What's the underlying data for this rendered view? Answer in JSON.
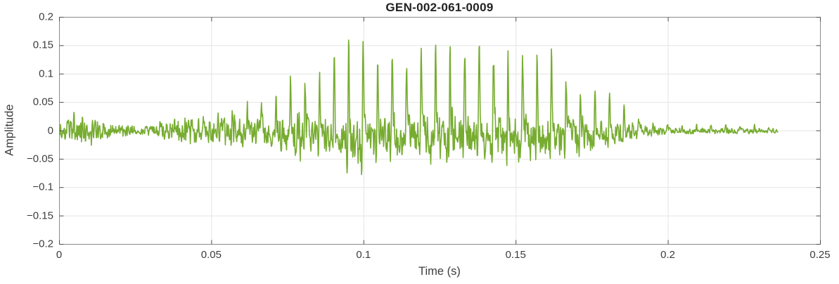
{
  "figure": {
    "title": "GEN-002-061-0009",
    "xlabel": "Time (s)",
    "ylabel": "Amplitude"
  },
  "chart_data": {
    "type": "line",
    "title": "GEN-002-061-0009",
    "xlabel": "Time (s)",
    "ylabel": "Amplitude",
    "xlim": [
      0,
      0.25
    ],
    "ylim": [
      -0.2,
      0.2
    ],
    "xticks": [
      0,
      0.05,
      0.1,
      0.15,
      0.2,
      0.25
    ],
    "xtick_labels": [
      "0",
      "0.05",
      "0.1",
      "0.15",
      "0.2",
      "0.25"
    ],
    "yticks": [
      -0.2,
      -0.15,
      -0.1,
      -0.05,
      0,
      0.05,
      0.1,
      0.15,
      0.2
    ],
    "ytick_labels": [
      "−0.2",
      "−0.15",
      "−0.1",
      "−0.05",
      "0",
      "0.05",
      "0.1",
      "0.15",
      "0.2"
    ],
    "grid": true,
    "legend": "none",
    "line_color": "#77AC30",
    "line_width": 1.6,
    "axis_color": "#8c8c8c",
    "tick_color": "#4d4d4d",
    "grid_color": "#e4e4e4",
    "tick_label_color": "#3d3d3d",
    "title_color": "#212121",
    "label_color": "#3d3d3d",
    "background": "#ffffff",
    "signal": {
      "kind": "speech-like audio waveform",
      "duration_s": 0.236,
      "sample_rate_hz": 8000,
      "pitch_hz": 210,
      "harmonic_amps": [
        0.3,
        0.26,
        0.2,
        0.22,
        0.18,
        0.12,
        0.1,
        0.07
      ],
      "harmonic_phases": [
        0,
        0.3,
        0.6,
        1.0,
        1.4,
        1.9,
        2.4,
        3.0
      ],
      "negative_asymmetry": 0.92,
      "noise_mix_keyframes": [
        [
          0.0,
          0.6
        ],
        [
          0.03,
          0.6
        ],
        [
          0.05,
          0.45
        ],
        [
          0.07,
          0.3
        ],
        [
          0.09,
          0.18
        ],
        [
          0.16,
          0.18
        ],
        [
          0.185,
          0.28
        ],
        [
          0.2,
          0.35
        ],
        [
          0.236,
          0.35
        ]
      ],
      "envelope_keyframes": [
        [
          0.0,
          0.02
        ],
        [
          0.003,
          0.032
        ],
        [
          0.006,
          0.04
        ],
        [
          0.009,
          0.035
        ],
        [
          0.012,
          0.038
        ],
        [
          0.015,
          0.028
        ],
        [
          0.018,
          0.018
        ],
        [
          0.022,
          0.014
        ],
        [
          0.026,
          0.011
        ],
        [
          0.03,
          0.013
        ],
        [
          0.034,
          0.022
        ],
        [
          0.038,
          0.03
        ],
        [
          0.042,
          0.04
        ],
        [
          0.045,
          0.048
        ],
        [
          0.048,
          0.036
        ],
        [
          0.052,
          0.042
        ],
        [
          0.056,
          0.055
        ],
        [
          0.06,
          0.062
        ],
        [
          0.064,
          0.055
        ],
        [
          0.068,
          0.085
        ],
        [
          0.072,
          0.105
        ],
        [
          0.076,
          0.12
        ],
        [
          0.08,
          0.13
        ],
        [
          0.084,
          0.115
        ],
        [
          0.088,
          0.14
        ],
        [
          0.092,
          0.15
        ],
        [
          0.096,
          0.178
        ],
        [
          0.1,
          0.188
        ],
        [
          0.104,
          0.165
        ],
        [
          0.108,
          0.178
        ],
        [
          0.112,
          0.16
        ],
        [
          0.116,
          0.15
        ],
        [
          0.12,
          0.168
        ],
        [
          0.124,
          0.178
        ],
        [
          0.128,
          0.188
        ],
        [
          0.132,
          0.175
        ],
        [
          0.136,
          0.188
        ],
        [
          0.14,
          0.19
        ],
        [
          0.144,
          0.172
        ],
        [
          0.148,
          0.192
        ],
        [
          0.152,
          0.182
        ],
        [
          0.156,
          0.178
        ],
        [
          0.16,
          0.168
        ],
        [
          0.164,
          0.135
        ],
        [
          0.168,
          0.122
        ],
        [
          0.172,
          0.112
        ],
        [
          0.176,
          0.092
        ],
        [
          0.18,
          0.072
        ],
        [
          0.184,
          0.056
        ],
        [
          0.188,
          0.044
        ],
        [
          0.192,
          0.032
        ],
        [
          0.196,
          0.02
        ],
        [
          0.2,
          0.015
        ],
        [
          0.205,
          0.013
        ],
        [
          0.21,
          0.015
        ],
        [
          0.215,
          0.012
        ],
        [
          0.22,
          0.013
        ],
        [
          0.225,
          0.01
        ],
        [
          0.23,
          0.012
        ],
        [
          0.236,
          0.009
        ]
      ]
    }
  }
}
